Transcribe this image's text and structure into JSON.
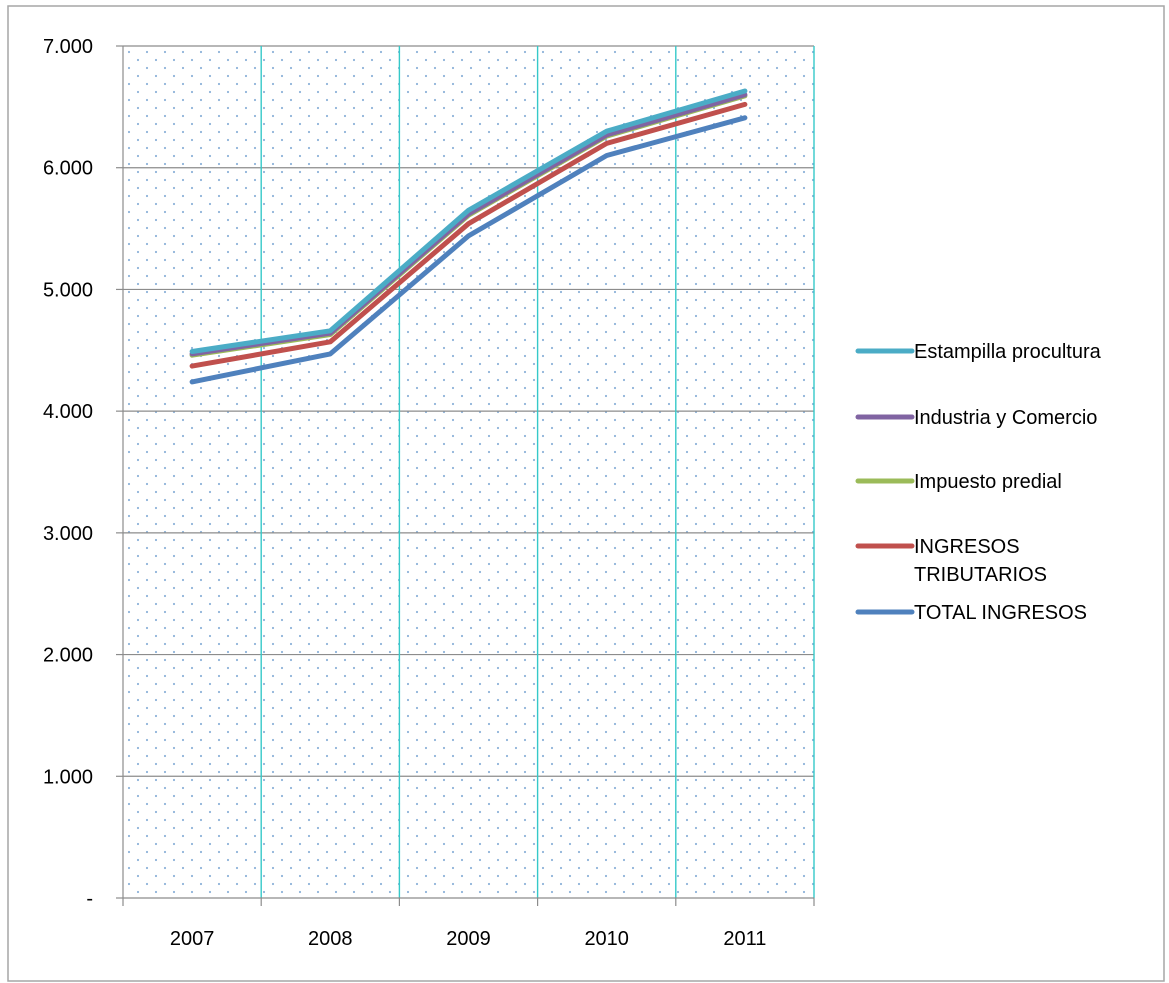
{
  "chart_data": {
    "type": "line",
    "title": "",
    "xlabel": "",
    "ylabel": "",
    "categories": [
      "2007",
      "2008",
      "2009",
      "2010",
      "2011"
    ],
    "ylim": [
      0,
      7000
    ],
    "yticks": [
      0,
      1000,
      2000,
      3000,
      4000,
      5000,
      6000,
      7000
    ],
    "ytick_labels": [
      "-",
      "1.000",
      "2.000",
      "3.000",
      "4.000",
      "5.000",
      "6.000",
      "7.000"
    ],
    "grid": true,
    "legend_position": "right",
    "series": [
      {
        "name": "Estampilla procultura",
        "color": "#4bacc6",
        "values": [
          4490,
          4660,
          5650,
          6300,
          6630
        ]
      },
      {
        "name": "Industria y Comercio",
        "color": "#8064a2",
        "values": [
          4470,
          4640,
          5620,
          6270,
          6600
        ]
      },
      {
        "name": "Impuesto predial",
        "color": "#9bbb59",
        "values": [
          4460,
          4630,
          5610,
          6260,
          6590
        ]
      },
      {
        "name": "INGRESOS TRIBUTARIOS",
        "color": "#c0504d",
        "values": [
          4370,
          4570,
          5540,
          6200,
          6520
        ]
      },
      {
        "name": "TOTAL INGRESOS",
        "color": "#4f81bd",
        "values": [
          4240,
          4470,
          5440,
          6100,
          6410
        ]
      }
    ],
    "legend_order": [
      0,
      1,
      2,
      3,
      4
    ],
    "legend_lines": [
      [
        "Estampilla procultura"
      ],
      [
        "Industria y Comercio"
      ],
      [
        "Impuesto predial"
      ],
      [
        "INGRESOS",
        "TRIBUTARIOS"
      ],
      [
        "TOTAL INGRESOS"
      ]
    ]
  }
}
